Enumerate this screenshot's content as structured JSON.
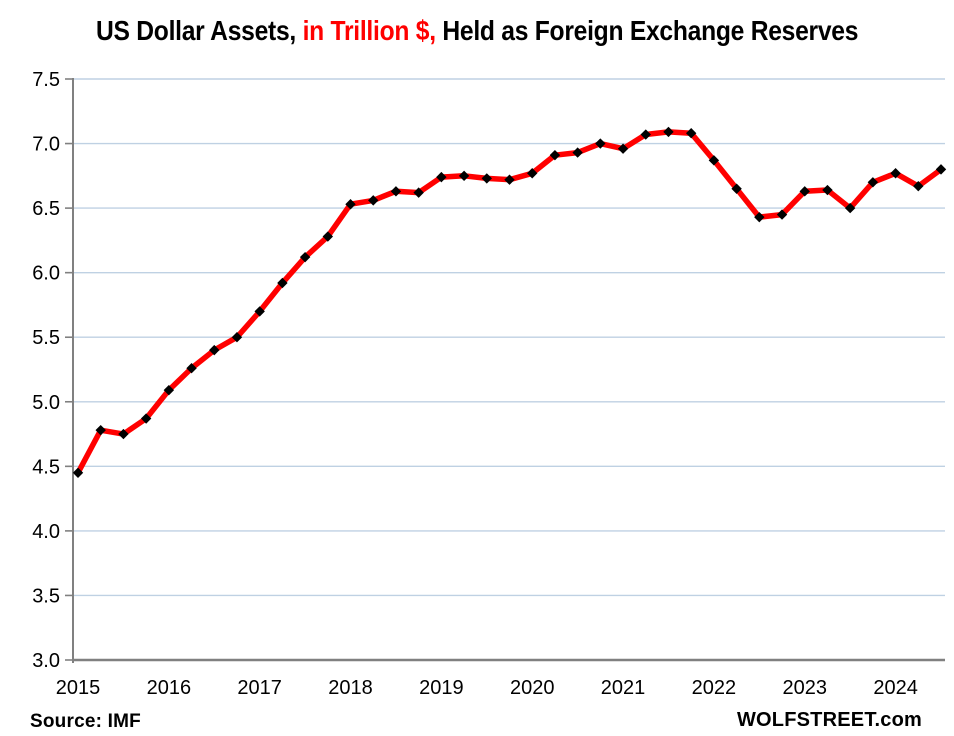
{
  "title": {
    "segments": [
      {
        "text": "US Dollar Assets, ",
        "color": "#000000"
      },
      {
        "text": "in Trillion $, ",
        "color": "#FF0000"
      },
      {
        "text": "Held as Foreign Exchange Reserves",
        "color": "#000000"
      }
    ]
  },
  "footer": {
    "source": "Source: IMF",
    "branding": "WOLFSTREET.com"
  },
  "chart_data": {
    "type": "line",
    "title": "US Dollar Assets, in Trillion $, Held as Foreign Exchange Reserves",
    "xlabel": "",
    "ylabel": "",
    "units": "Trillion $",
    "ylim": [
      3.0,
      7.5
    ],
    "ytick_interval": 0.5,
    "yticks": [
      "7.5",
      "7.0",
      "6.5",
      "6.0",
      "5.5",
      "5.0",
      "4.5",
      "4.0",
      "3.5",
      "3.0"
    ],
    "x_year_labels": [
      "2015",
      "2016",
      "2017",
      "2018",
      "2019",
      "2020",
      "2021",
      "2022",
      "2023",
      "2024"
    ],
    "grid": "horizontal",
    "legend": "none",
    "series": [
      {
        "name": "US dollar assets held as foreign exchange reserves",
        "x": [
          "2015 Q1",
          "2015 Q2",
          "2015 Q3",
          "2015 Q4",
          "2016 Q1",
          "2016 Q2",
          "2016 Q3",
          "2016 Q4",
          "2017 Q1",
          "2017 Q2",
          "2017 Q3",
          "2017 Q4",
          "2018 Q1",
          "2018 Q2",
          "2018 Q3",
          "2018 Q4",
          "2019 Q1",
          "2019 Q2",
          "2019 Q3",
          "2019 Q4",
          "2020 Q1",
          "2020 Q2",
          "2020 Q3",
          "2020 Q4",
          "2021 Q1",
          "2021 Q2",
          "2021 Q3",
          "2021 Q4",
          "2022 Q1",
          "2022 Q2",
          "2022 Q3",
          "2022 Q4",
          "2023 Q1",
          "2023 Q2",
          "2023 Q3",
          "2023 Q4",
          "2024 Q1",
          "2024 Q2",
          "2024 Q3"
        ],
        "values": [
          4.45,
          4.78,
          4.75,
          4.87,
          5.09,
          5.26,
          5.4,
          5.5,
          5.7,
          5.92,
          6.12,
          6.28,
          6.53,
          6.56,
          6.63,
          6.62,
          6.74,
          6.75,
          6.73,
          6.72,
          6.77,
          6.91,
          6.93,
          7.0,
          6.96,
          7.07,
          7.09,
          7.08,
          6.87,
          6.65,
          6.43,
          6.45,
          6.63,
          6.64,
          6.5,
          6.7,
          6.77,
          6.67,
          6.8
        ]
      }
    ],
    "colors": {
      "line": "#FF0000",
      "marker": "#000000",
      "gridline": "#BFD1E3",
      "axis": "#808080",
      "tick_label": "#000000"
    },
    "marker_shape": "diamond"
  }
}
